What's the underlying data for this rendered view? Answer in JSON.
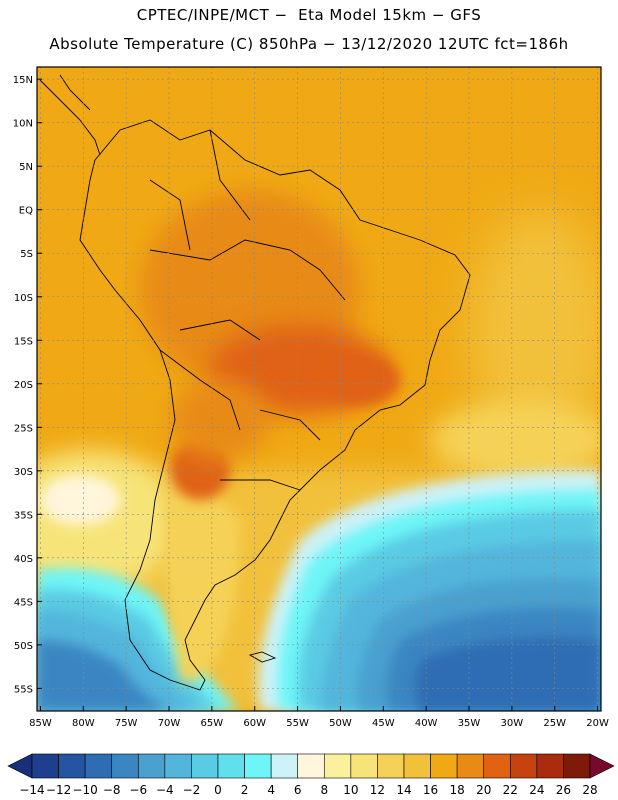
{
  "title": {
    "line1": "CPTEC/INPE/MCT −  Eta Model 15km − GFS",
    "line2": "Absolute Temperature (C) 850hPa − 13/12/2020 12UTC fct=186h"
  },
  "map": {
    "lat_labels": [
      "15N",
      "10N",
      "5N",
      "EQ",
      "5S",
      "10S",
      "15S",
      "20S",
      "25S",
      "30S",
      "35S",
      "40S",
      "45S",
      "50S",
      "55S"
    ],
    "lon_labels": [
      "85W",
      "80W",
      "75W",
      "70W",
      "65W",
      "60W",
      "55W",
      "50W",
      "45W",
      "40W",
      "35W",
      "30W",
      "25W",
      "20W"
    ],
    "lat_values": [
      15,
      10,
      5,
      0,
      -5,
      -10,
      -15,
      -20,
      -25,
      -30,
      -35,
      -40,
      -45,
      -50,
      -55
    ],
    "lon_values": [
      -85,
      -80,
      -75,
      -70,
      -65,
      -60,
      -55,
      -50,
      -45,
      -40,
      -35,
      -30,
      -25,
      -20
    ],
    "extent": {
      "lon_min": -85.4,
      "lon_max": -19.6,
      "lat_min": -57.6,
      "lat_max": 16.4
    }
  },
  "colorbar": {
    "ticks": [
      "-14",
      "-12",
      "-10",
      "-8",
      "-6",
      "-4",
      "-2",
      "0",
      "2",
      "4",
      "6",
      "8",
      "10",
      "12",
      "14",
      "16",
      "18",
      "20",
      "22",
      "24",
      "26",
      "28"
    ],
    "colors": [
      "#1d3f8e",
      "#2554a2",
      "#2f6db3",
      "#3a86c2",
      "#4aa0cf",
      "#52b5dc",
      "#5acbe4",
      "#62dfec",
      "#6ef5f7",
      "#cdf2f8",
      "#fff6dc",
      "#fbf09c",
      "#f7e479",
      "#f5d257",
      "#f2c13a",
      "#f0a914",
      "#e88a14",
      "#e06212",
      "#c6430f",
      "#a82c0d",
      "#7e1a0a"
    ],
    "under_color": "#1a2f7a",
    "over_color": "#770a2c"
  }
}
